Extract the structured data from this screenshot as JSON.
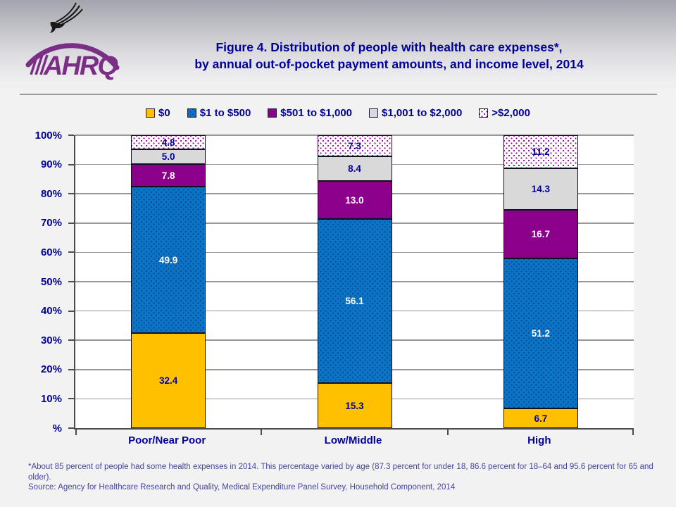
{
  "header": {
    "title_line1": "Figure 4. Distribution of people with health care expenses*,",
    "title_line2": "by annual out-of-pocket payment amounts, and income level, 2014",
    "logo_text": "AHRQ"
  },
  "chart_data": {
    "type": "bar",
    "stacked": true,
    "title": "Figure 4. Distribution of people with health care expenses*, by annual out-of-pocket payment amounts, and income level, 2014",
    "categories": [
      "Poor/Near Poor",
      "Low/Middle",
      "High"
    ],
    "series": [
      {
        "name": "$0",
        "values": [
          32.4,
          15.3,
          6.7
        ],
        "display": [
          "32.4",
          "15.3",
          "6.7"
        ],
        "color": "#FFC000",
        "pattern": "solid",
        "label_color": "#000099"
      },
      {
        "name": "$1 to $500",
        "values": [
          49.9,
          56.1,
          51.2
        ],
        "display": [
          "49.9",
          "56.1",
          "51.2"
        ],
        "color": "#0B74C4",
        "pattern": "dots-blue",
        "label_color": "#FFFFFF"
      },
      {
        "name": "$501 to $1,000",
        "values": [
          7.8,
          13.0,
          16.7
        ],
        "display": [
          "7.8",
          "13.0",
          "16.7"
        ],
        "color": "#8B008B",
        "pattern": "solid",
        "label_color": "#FFFFFF"
      },
      {
        "name": "$1,001 to $2,000",
        "values": [
          5.0,
          8.4,
          14.3
        ],
        "display": [
          "5.0",
          "8.4",
          "14.3"
        ],
        "color": "#D9D9D9",
        "pattern": "solid",
        "label_color": "#000099"
      },
      {
        "name": ">$2,000",
        "values": [
          4.8,
          7.3,
          11.2
        ],
        "display": [
          "4.8",
          "7.3",
          "11.2"
        ],
        "color": "#FFFFFF",
        "pattern": "dots-magenta",
        "label_color": "#000099"
      }
    ],
    "yticks": [
      "100%",
      "90%",
      "80%",
      "70%",
      "60%",
      "50%",
      "40%",
      "30%",
      "20%",
      "10%",
      "%"
    ],
    "ylim": [
      0,
      100
    ],
    "grid": true,
    "legend_position": "top"
  },
  "footnote": {
    "note": "*About 85 percent of people had some health expenses in 2014. This percentage varied by age (87.3 percent for under 18, 86.6 percent for 18–64 and 95.6 percent for 65 and older).",
    "source": "Source: Agency for Healthcare Research and Quality, Medical Expenditure Panel Survey,  Household Component, 2014"
  },
  "colors": {
    "title_text": "#000099",
    "axis_text": "#000099",
    "footnote_text": "#4545A5",
    "gridline": "#979797",
    "axis_line": "#4D4D4D",
    "logo_purple": "#7B2E86",
    "segment_border": "#111122"
  }
}
